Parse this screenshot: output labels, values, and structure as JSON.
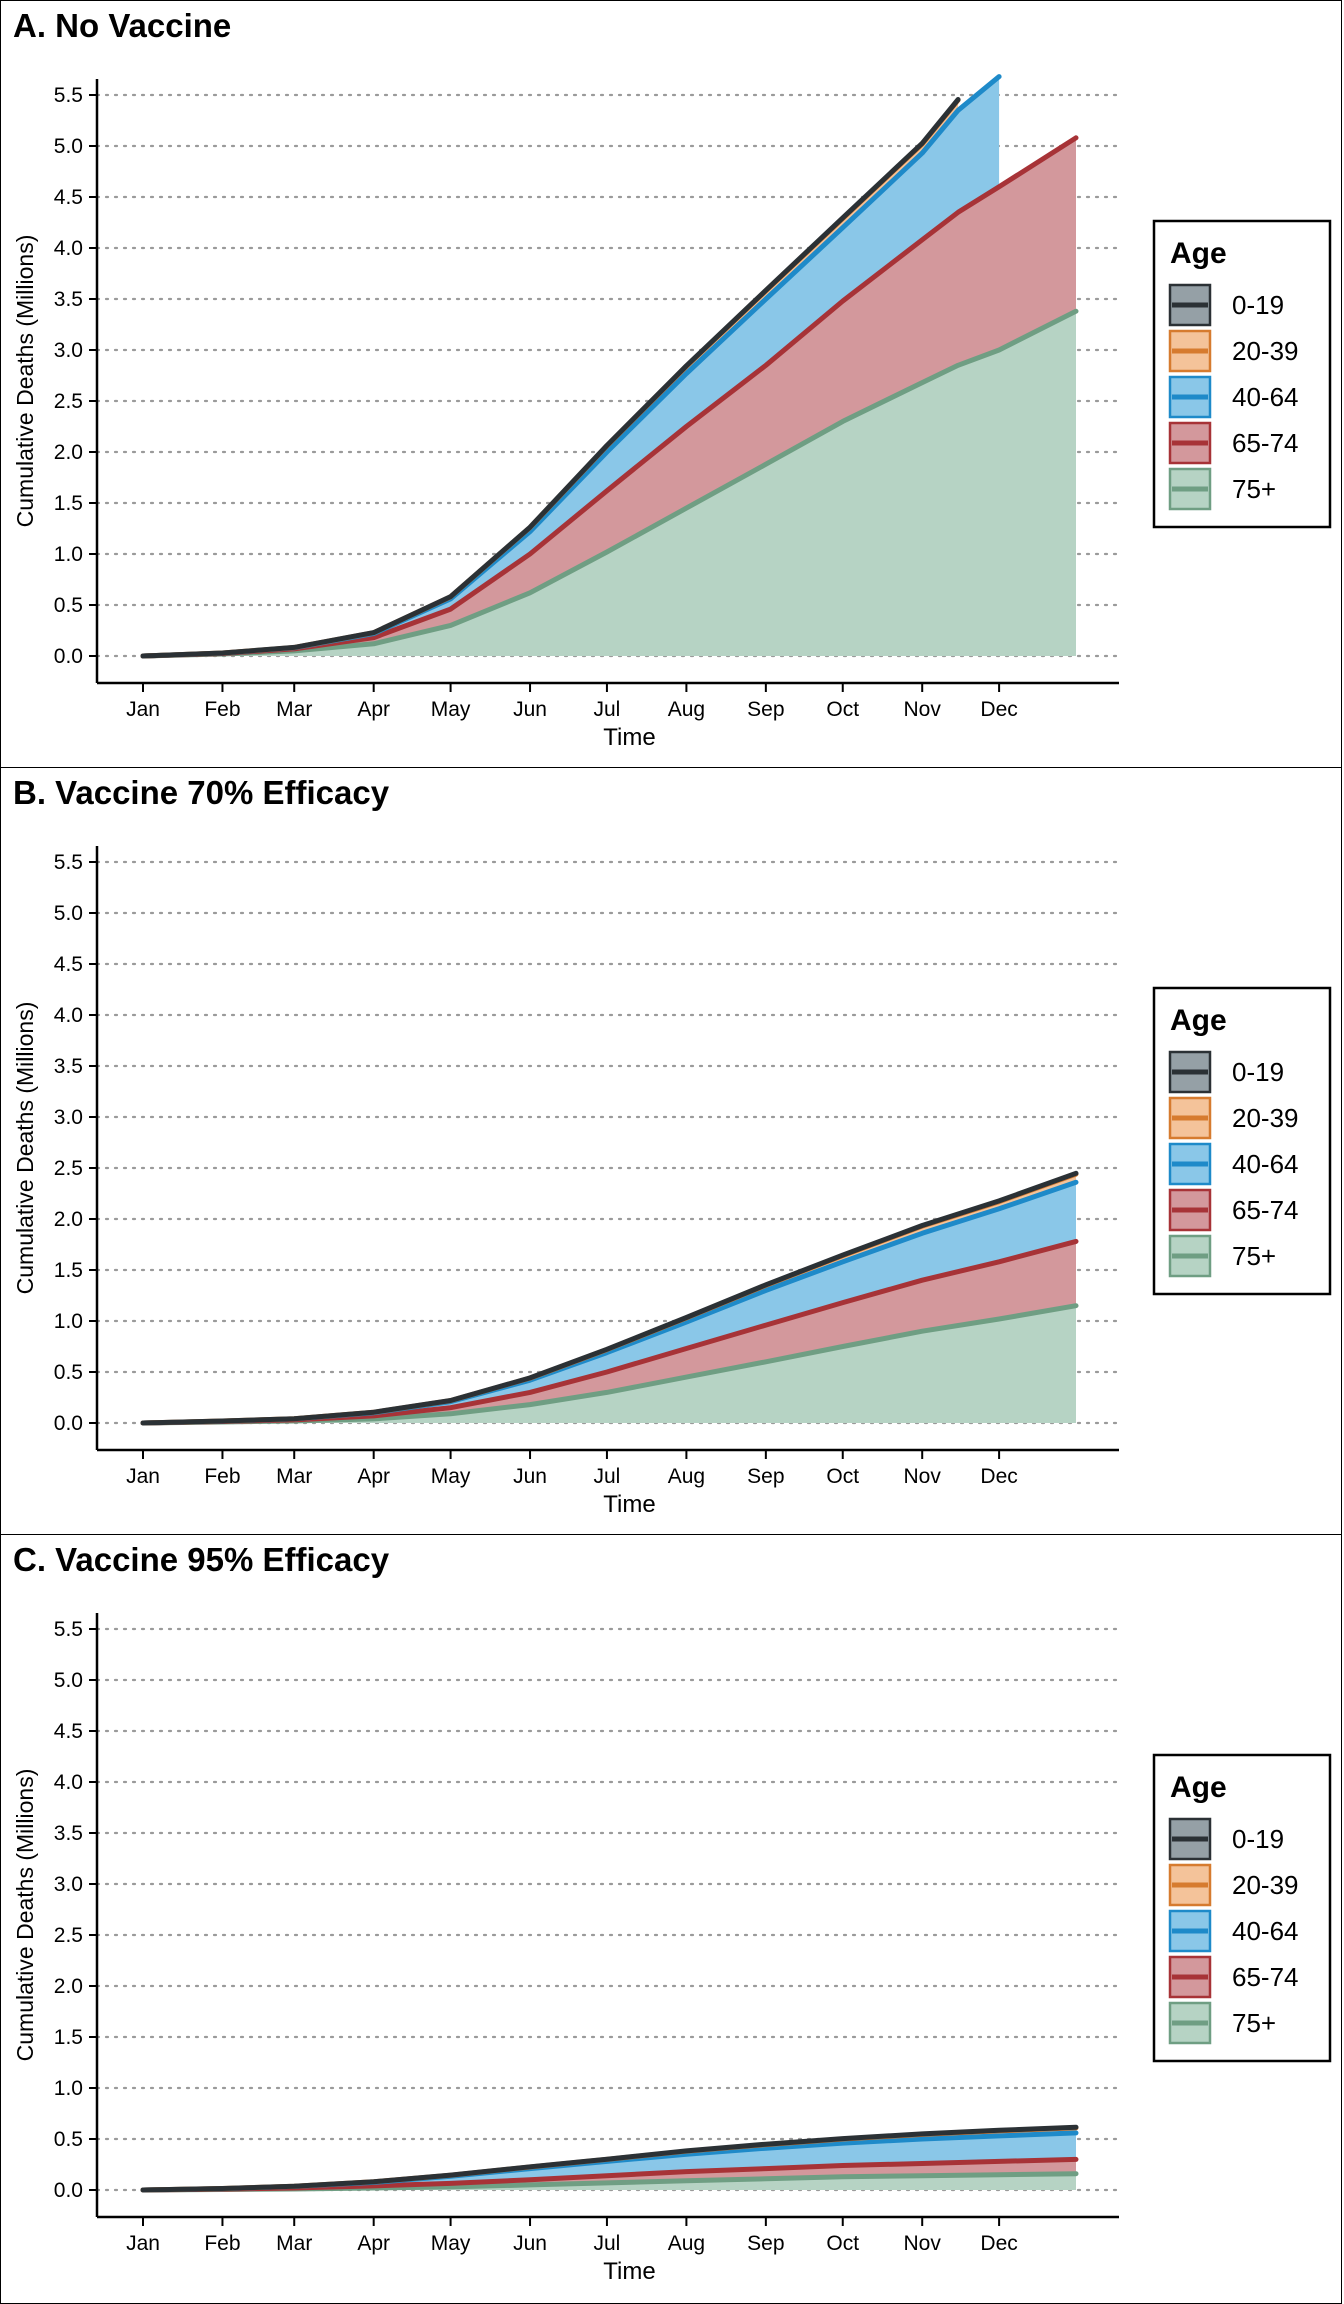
{
  "legend": {
    "title": "Age",
    "entries": [
      {
        "label": "0-19",
        "fill": "#95a0a6",
        "line": "#2b3135"
      },
      {
        "label": "20-39",
        "fill": "#f4c39a",
        "line": "#d67b2f"
      },
      {
        "label": "40-64",
        "fill": "#8ac7e8",
        "line": "#1e8ac9"
      },
      {
        "label": "65-74",
        "fill": "#d3989c",
        "line": "#a73337"
      },
      {
        "label": "75+",
        "fill": "#b6d3c4",
        "line": "#6f9e83"
      }
    ]
  },
  "chart_data": [
    {
      "type": "area",
      "stacked": true,
      "title": "A. No Vaccine",
      "xlabel": "Time",
      "ylabel": "Cumulative Deaths (Millions)",
      "ylim": [
        0,
        5.7
      ],
      "yticks": [
        0.0,
        0.5,
        1.0,
        1.5,
        2.0,
        2.5,
        3.0,
        3.5,
        4.0,
        4.5,
        5.0,
        5.5
      ],
      "grid": "horizontal dotted",
      "legend_position": "right",
      "x_tick_labels": [
        "Jan",
        "Feb",
        "Mar",
        "Apr",
        "May",
        "Jun",
        "Jul",
        "Aug",
        "Sep",
        "Oct",
        "Nov",
        "Dec"
      ],
      "x": [
        "Jan 1",
        "Feb 1",
        "Mar 1",
        "Apr 1",
        "May 1",
        "Jun 1",
        "Jul 1",
        "Aug 1",
        "Sep 1",
        "Oct 1",
        "Nov 1",
        "Nov 15",
        "Dec 1",
        "Dec 31"
      ],
      "series": [
        {
          "name": "75+",
          "values": [
            0.0,
            0.02,
            0.05,
            0.12,
            0.3,
            0.62,
            1.02,
            1.45,
            1.88,
            2.3,
            2.68,
            2.85,
            3.0,
            3.38
          ]
        },
        {
          "name": "65-74",
          "values": [
            0.0,
            0.005,
            0.02,
            0.06,
            0.16,
            0.38,
            0.6,
            0.8,
            0.97,
            1.18,
            1.4,
            1.5,
            1.6,
            1.7
          ]
        },
        {
          "name": "40-64",
          "values": [
            0.0,
            0.003,
            0.01,
            0.04,
            0.1,
            0.22,
            0.38,
            0.52,
            0.65,
            0.72,
            0.85,
            1.0,
            1.08,
            null
          ]
        },
        {
          "name": "20-39",
          "values": [
            0.0,
            0.001,
            0.003,
            0.008,
            0.02,
            0.04,
            0.06,
            0.07,
            0.08,
            0.09,
            0.09,
            0.1,
            null,
            null
          ]
        },
        {
          "name": "0-19",
          "values": [
            0.0,
            0.0,
            0.001,
            0.001,
            0.002,
            0.003,
            0.004,
            0.005,
            0.005,
            0.006,
            0.006,
            0.006,
            null,
            null
          ]
        }
      ]
    },
    {
      "type": "area",
      "stacked": true,
      "title": "B. Vaccine 70% Efficacy",
      "xlabel": "Time",
      "ylabel": "Cumulative Deaths (Millions)",
      "ylim": [
        0,
        5.7
      ],
      "yticks": [
        0.0,
        0.5,
        1.0,
        1.5,
        2.0,
        2.5,
        3.0,
        3.5,
        4.0,
        4.5,
        5.0,
        5.5
      ],
      "grid": "horizontal dotted",
      "legend_position": "right",
      "x_tick_labels": [
        "Jan",
        "Feb",
        "Mar",
        "Apr",
        "May",
        "Jun",
        "Jul",
        "Aug",
        "Sep",
        "Oct",
        "Nov",
        "Dec"
      ],
      "x": [
        "Jan 1",
        "Feb 1",
        "Mar 1",
        "Apr 1",
        "May 1",
        "Jun 1",
        "Jul 1",
        "Aug 1",
        "Sep 1",
        "Oct 1",
        "Nov 1",
        "Dec 1",
        "Dec 31"
      ],
      "series": [
        {
          "name": "75+",
          "values": [
            0.0,
            0.01,
            0.02,
            0.04,
            0.09,
            0.18,
            0.3,
            0.45,
            0.6,
            0.75,
            0.9,
            1.02,
            1.15
          ]
        },
        {
          "name": "65-74",
          "values": [
            0.0,
            0.005,
            0.01,
            0.03,
            0.06,
            0.12,
            0.2,
            0.28,
            0.36,
            0.43,
            0.5,
            0.56,
            0.63
          ]
        },
        {
          "name": "40-64",
          "values": [
            0.0,
            0.004,
            0.01,
            0.03,
            0.06,
            0.12,
            0.19,
            0.26,
            0.34,
            0.4,
            0.46,
            0.52,
            0.58
          ]
        },
        {
          "name": "20-39",
          "values": [
            0.0,
            0.001,
            0.002,
            0.005,
            0.01,
            0.02,
            0.03,
            0.04,
            0.05,
            0.06,
            0.07,
            0.07,
            0.08
          ]
        },
        {
          "name": "0-19",
          "values": [
            0.0,
            0.0,
            0.0,
            0.001,
            0.001,
            0.002,
            0.003,
            0.004,
            0.005,
            0.006,
            0.006,
            0.007,
            0.008
          ]
        }
      ]
    },
    {
      "type": "area",
      "stacked": true,
      "title": "C. Vaccine 95% Efficacy",
      "xlabel": "Time",
      "ylabel": "Cumulative Deaths (Millions)",
      "ylim": [
        0,
        5.7
      ],
      "yticks": [
        0.0,
        0.5,
        1.0,
        1.5,
        2.0,
        2.5,
        3.0,
        3.5,
        4.0,
        4.5,
        5.0,
        5.5
      ],
      "grid": "horizontal dotted",
      "legend_position": "right",
      "x_tick_labels": [
        "Jan",
        "Feb",
        "Mar",
        "Apr",
        "May",
        "Jun",
        "Jul",
        "Aug",
        "Sep",
        "Oct",
        "Nov",
        "Dec"
      ],
      "x": [
        "Jan 1",
        "Feb 1",
        "Mar 1",
        "Apr 1",
        "May 1",
        "Jun 1",
        "Jul 1",
        "Aug 1",
        "Sep 1",
        "Oct 1",
        "Nov 1",
        "Dec 1",
        "Dec 31"
      ],
      "series": [
        {
          "name": "75+",
          "values": [
            0.0,
            0.005,
            0.01,
            0.02,
            0.03,
            0.05,
            0.07,
            0.09,
            0.11,
            0.13,
            0.14,
            0.15,
            0.16
          ]
        },
        {
          "name": "65-74",
          "values": [
            0.0,
            0.004,
            0.01,
            0.02,
            0.035,
            0.05,
            0.07,
            0.09,
            0.1,
            0.11,
            0.12,
            0.13,
            0.14
          ]
        },
        {
          "name": "40-64",
          "values": [
            0.0,
            0.005,
            0.015,
            0.035,
            0.07,
            0.11,
            0.14,
            0.17,
            0.2,
            0.22,
            0.24,
            0.25,
            0.26
          ]
        },
        {
          "name": "20-39",
          "values": [
            0.0,
            0.001,
            0.002,
            0.005,
            0.01,
            0.015,
            0.02,
            0.03,
            0.035,
            0.04,
            0.045,
            0.05,
            0.05
          ]
        },
        {
          "name": "0-19",
          "values": [
            0.0,
            0.0,
            0.0,
            0.001,
            0.001,
            0.002,
            0.002,
            0.003,
            0.004,
            0.004,
            0.005,
            0.005,
            0.006
          ]
        }
      ]
    }
  ]
}
